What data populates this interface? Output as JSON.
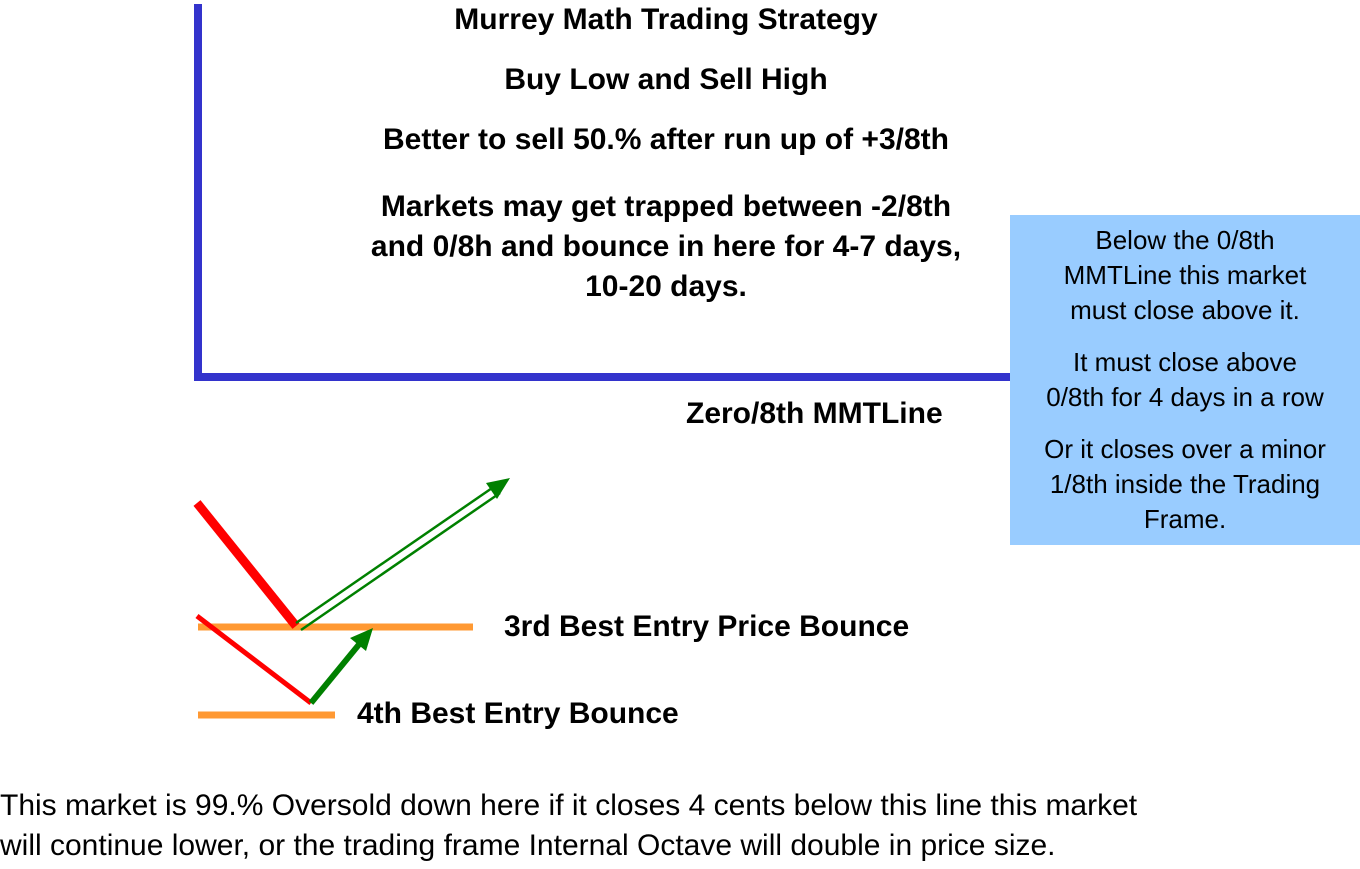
{
  "title": "Murrey Math Trading Strategy",
  "subtitle": "Buy Low and Sell High",
  "advice": "Better to sell 50.% after run up of +3/8th",
  "trap_note": [
    "Markets may get trapped between -2/8th",
    "and 0/8h and bounce in here for 4-7 days,",
    "10-20 days."
  ],
  "zero_line_label": "Zero/8th MMTLine",
  "info_box": {
    "paragraphs": [
      [
        "Below the 0/8th",
        "MMTLine this market",
        "must close above it."
      ],
      [
        "It must close above",
        "0/8th for 4 days in a row"
      ],
      [
        "Or it closes over a minor",
        "1/8th inside the Trading",
        "Frame."
      ]
    ]
  },
  "entry_labels": {
    "third": "3rd Best Entry Price Bounce",
    "fourth": "4th Best Entry Bounce"
  },
  "footer": [
    "This market is 99.% Oversold down here if it closes 4 cents below  this line this market",
    "will continue lower, or the trading frame Internal Octave will double in price size."
  ],
  "colors": {
    "frame_line": "#3333cc",
    "down_move": "#ff0000",
    "up_move": "#008000",
    "entry_line": "#ff9933",
    "info_box_bg": "#99ccff"
  }
}
